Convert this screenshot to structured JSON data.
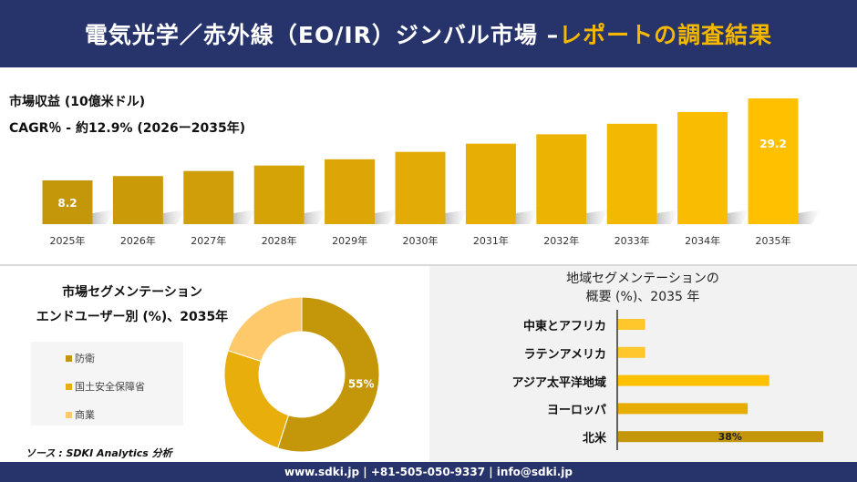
{
  "header": {
    "title_main": "電気光学／赤外線（EO/IR）ジンバル市場 –",
    "title_accent": "レポートの調査結果",
    "colors": {
      "background": "#27336b",
      "accent": "#f5b800"
    }
  },
  "revenue": {
    "unit_label": "市場収益 (10億米ドル)",
    "cagr_label": "CAGR％ - 約12.9% (2026ー2035年)"
  },
  "chart_data": [
    {
      "type": "bar",
      "categories": [
        "2025年",
        "2026年",
        "2027年",
        "2028年",
        "2029年",
        "2030年",
        "2031年",
        "2032年",
        "2033年",
        "2034年",
        "2035年"
      ],
      "values": [
        8.2,
        9.3,
        10.6,
        12.0,
        13.6,
        15.5,
        17.6,
        20.0,
        22.7,
        25.7,
        29.2
      ],
      "data_labels": {
        "0": "8.2",
        "10": "29.2"
      },
      "colors": [
        "#c4960a",
        "#ffc000"
      ]
    },
    {
      "type": "pie",
      "donut": true,
      "title": "市場セグメンテーション",
      "subtitle": "エンドユーザー別 (%)、2035年",
      "labels": [
        "防衛",
        "国土安全保障省",
        "商業"
      ],
      "values": [
        55,
        25,
        20
      ],
      "data_labels": {
        "0": "55%"
      },
      "colors": [
        "#c4960a",
        "#e8ae0c",
        "#fdc96a"
      ],
      "legend": "left"
    },
    {
      "type": "bar",
      "orientation": "horizontal",
      "title": "地域セグメンテーションの",
      "subtitle": "概要 (%)、2035 年",
      "categories": [
        "中東とアフリカ",
        "ラテンアメリカ",
        "アジア太平洋地域",
        "ヨーロッパ",
        "北米"
      ],
      "values": [
        5,
        5,
        28,
        24,
        38
      ],
      "data_labels": {
        "4": "38%"
      },
      "colors": [
        "#ffc72c",
        "#ffc72c",
        "#ffc000",
        "#e6ac00",
        "#c4960a"
      ]
    }
  ],
  "source": "ソース : SDKI Analytics 分析",
  "footer": "www.sdki.jp | +81-505-050-9337 | info@sdki.jp"
}
